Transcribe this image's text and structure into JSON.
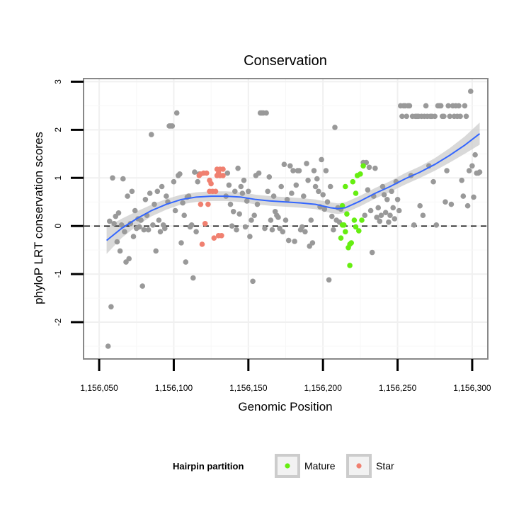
{
  "chart_data": {
    "type": "scatter",
    "title": "Conservation",
    "xlabel": "Genomic Position",
    "ylabel": "phyloP LRT conservation scores",
    "xlim": [
      1156040,
      1156310
    ],
    "ylim": [
      -2.75,
      3.05
    ],
    "x_ticks": [
      1156050,
      1156100,
      1156150,
      1156200,
      1156250,
      1156300
    ],
    "x_tick_labels": [
      "1,156,050",
      "1,156,100",
      "1,156,150",
      "1,156,200",
      "1,156,250",
      "1,156,300"
    ],
    "y_ticks": [
      -2,
      -1,
      0,
      1,
      2,
      3
    ],
    "y_tick_labels": [
      "-2",
      "-1",
      "0",
      "1",
      "2",
      "3"
    ],
    "grid": true,
    "reference_line": {
      "y": 0,
      "style": "dashed"
    },
    "legend": {
      "title": "Hairpin partition",
      "position": "bottom",
      "entries": [
        {
          "label": "Mature",
          "color": "#66ee11"
        },
        {
          "label": "Star",
          "color": "#f08070"
        }
      ]
    },
    "colors": {
      "other": "#999999",
      "Mature": "#66ee11",
      "Star": "#f08070",
      "smooth": "#3366ff",
      "band": "#cccccc"
    },
    "series": [
      {
        "group": "other",
        "points": [
          [
            1156056,
            -2.5
          ],
          [
            1156058,
            -1.68
          ],
          [
            1156059,
            1.0
          ],
          [
            1156057,
            0.1
          ],
          [
            1156060,
            0.05
          ],
          [
            1156061,
            0.2
          ],
          [
            1156062,
            -0.33
          ],
          [
            1156063,
            0.27
          ],
          [
            1156064,
            -0.52
          ],
          [
            1156065,
            0.02
          ],
          [
            1156066,
            0.98
          ],
          [
            1156067,
            -0.12
          ],
          [
            1156068,
            -0.75
          ],
          [
            1156069,
            0.62
          ],
          [
            1156070,
            -0.68
          ],
          [
            1156071,
            0.05
          ],
          [
            1156072,
            0.72
          ],
          [
            1156073,
            -0.22
          ],
          [
            1156074,
            0.32
          ],
          [
            1156075,
            -0.05
          ],
          [
            1156076,
            0.15
          ],
          [
            1156077,
            -0.02
          ],
          [
            1156078,
            0.12
          ],
          [
            1156079,
            -1.25
          ],
          [
            1156080,
            -0.08
          ],
          [
            1156081,
            0.55
          ],
          [
            1156082,
            0.22
          ],
          [
            1156083,
            -0.08
          ],
          [
            1156084,
            0.68
          ],
          [
            1156085,
            1.9
          ],
          [
            1156086,
            0.02
          ],
          [
            1156087,
            0.45
          ],
          [
            1156088,
            -0.52
          ],
          [
            1156089,
            0.72
          ],
          [
            1156090,
            0.12
          ],
          [
            1156091,
            -0.12
          ],
          [
            1156092,
            0.82
          ],
          [
            1156093,
            0.02
          ],
          [
            1156094,
            -0.05
          ],
          [
            1156095,
            0.62
          ],
          [
            1156096,
            0.5
          ],
          [
            1156097,
            2.08
          ],
          [
            1156098,
            2.08
          ],
          [
            1156099,
            2.08
          ],
          [
            1156100,
            0.92
          ],
          [
            1156101,
            0.32
          ],
          [
            1156102,
            2.35
          ],
          [
            1156103,
            1.05
          ],
          [
            1156104,
            1.08
          ],
          [
            1156105,
            -0.35
          ],
          [
            1156106,
            0.48
          ],
          [
            1156107,
            0.22
          ],
          [
            1156108,
            -0.75
          ],
          [
            1156109,
            0.6
          ],
          [
            1156110,
            0.62
          ],
          [
            1156111,
            -0.02
          ],
          [
            1156112,
            0.02
          ],
          [
            1156113,
            -1.08
          ],
          [
            1156114,
            1.12
          ],
          [
            1156115,
            -0.12
          ],
          [
            1156116,
            0.92
          ],
          [
            1156117,
            1.08
          ],
          [
            1156135,
            0.62
          ],
          [
            1156136,
            1.1
          ],
          [
            1156137,
            0.85
          ],
          [
            1156138,
            0.45
          ],
          [
            1156139,
            0.0
          ],
          [
            1156140,
            0.3
          ],
          [
            1156141,
            0.72
          ],
          [
            1156142,
            -0.08
          ],
          [
            1156143,
            1.2
          ],
          [
            1156144,
            0.25
          ],
          [
            1156145,
            0.82
          ],
          [
            1156146,
            0.68
          ],
          [
            1156147,
            0.95
          ],
          [
            1156148,
            -0.02
          ],
          [
            1156149,
            0.52
          ],
          [
            1156150,
            0.72
          ],
          [
            1156151,
            -0.22
          ],
          [
            1156152,
            0.12
          ],
          [
            1156153,
            -1.15
          ],
          [
            1156154,
            0.22
          ],
          [
            1156155,
            1.05
          ],
          [
            1156156,
            0.45
          ],
          [
            1156157,
            1.1
          ],
          [
            1156158,
            2.35
          ],
          [
            1156159,
            2.35
          ],
          [
            1156160,
            2.35
          ],
          [
            1156161,
            -0.05
          ],
          [
            1156162,
            2.35
          ],
          [
            1156163,
            0.72
          ],
          [
            1156164,
            1.02
          ],
          [
            1156165,
            0.12
          ],
          [
            1156166,
            -0.08
          ],
          [
            1156167,
            0.62
          ],
          [
            1156168,
            0.3
          ],
          [
            1156169,
            0.22
          ],
          [
            1156170,
            0.18
          ],
          [
            1156171,
            -0.05
          ],
          [
            1156172,
            0.82
          ],
          [
            1156173,
            -0.12
          ],
          [
            1156174,
            1.28
          ],
          [
            1156175,
            0.12
          ],
          [
            1156176,
            0.55
          ],
          [
            1156177,
            -0.3
          ],
          [
            1156178,
            1.25
          ],
          [
            1156179,
            0.68
          ],
          [
            1156180,
            1.15
          ],
          [
            1156181,
            -0.32
          ],
          [
            1156182,
            0.85
          ],
          [
            1156183,
            1.15
          ],
          [
            1156184,
            1.15
          ],
          [
            1156185,
            -0.08
          ],
          [
            1156186,
            -0.02
          ],
          [
            1156187,
            0.62
          ],
          [
            1156188,
            -0.12
          ],
          [
            1156189,
            1.3
          ],
          [
            1156190,
            0.95
          ],
          [
            1156191,
            -0.42
          ],
          [
            1156192,
            0.12
          ],
          [
            1156193,
            -0.35
          ],
          [
            1156194,
            1.15
          ],
          [
            1156195,
            0.82
          ],
          [
            1156196,
            0.98
          ],
          [
            1156197,
            0.72
          ],
          [
            1156198,
            0.4
          ],
          [
            1156199,
            1.38
          ],
          [
            1156200,
            0.65
          ],
          [
            1156201,
            0.35
          ],
          [
            1156202,
            1.15
          ],
          [
            1156203,
            0.5
          ],
          [
            1156204,
            -1.12
          ],
          [
            1156205,
            0.82
          ],
          [
            1156206,
            0.2
          ],
          [
            1156207,
            -0.08
          ],
          [
            1156208,
            2.05
          ],
          [
            1156209,
            0.12
          ],
          [
            1156210,
            0.38
          ],
          [
            1156211,
            0.08
          ],
          [
            1156212,
            0.35
          ],
          [
            1156227,
            1.32
          ],
          [
            1156228,
            0.22
          ],
          [
            1156229,
            1.32
          ],
          [
            1156230,
            0.75
          ],
          [
            1156231,
            1.22
          ],
          [
            1156232,
            0.32
          ],
          [
            1156233,
            -0.55
          ],
          [
            1156234,
            0.62
          ],
          [
            1156235,
            1.2
          ],
          [
            1156236,
            0.18
          ],
          [
            1156237,
            0.38
          ],
          [
            1156238,
            0.1
          ],
          [
            1156239,
            0.22
          ],
          [
            1156240,
            0.82
          ],
          [
            1156241,
            0.65
          ],
          [
            1156242,
            0.28
          ],
          [
            1156243,
            0.55
          ],
          [
            1156244,
            0.08
          ],
          [
            1156245,
            0.22
          ],
          [
            1156246,
            0.72
          ],
          [
            1156247,
            0.38
          ],
          [
            1156248,
            0.15
          ],
          [
            1156249,
            0.92
          ],
          [
            1156250,
            0.55
          ],
          [
            1156251,
            0.32
          ],
          [
            1156252,
            2.5
          ],
          [
            1156253,
            2.28
          ],
          [
            1156254,
            2.5
          ],
          [
            1156255,
            2.5
          ],
          [
            1156256,
            2.28
          ],
          [
            1156257,
            2.5
          ],
          [
            1156258,
            2.5
          ],
          [
            1156259,
            1.05
          ],
          [
            1156260,
            2.28
          ],
          [
            1156261,
            0.02
          ],
          [
            1156262,
            2.28
          ],
          [
            1156263,
            2.28
          ],
          [
            1156264,
            2.28
          ],
          [
            1156265,
            0.42
          ],
          [
            1156266,
            2.28
          ],
          [
            1156267,
            0.22
          ],
          [
            1156268,
            2.28
          ],
          [
            1156269,
            2.5
          ],
          [
            1156270,
            2.28
          ],
          [
            1156271,
            1.25
          ],
          [
            1156272,
            2.28
          ],
          [
            1156273,
            2.28
          ],
          [
            1156274,
            0.92
          ],
          [
            1156275,
            2.28
          ],
          [
            1156276,
            0.02
          ],
          [
            1156277,
            2.5
          ],
          [
            1156278,
            2.5
          ],
          [
            1156279,
            2.5
          ],
          [
            1156280,
            2.28
          ],
          [
            1156281,
            2.28
          ],
          [
            1156282,
            0.5
          ],
          [
            1156283,
            1.15
          ],
          [
            1156284,
            2.5
          ],
          [
            1156285,
            2.28
          ],
          [
            1156286,
            0.45
          ],
          [
            1156287,
            2.5
          ],
          [
            1156288,
            2.28
          ],
          [
            1156289,
            2.5
          ],
          [
            1156290,
            2.28
          ],
          [
            1156291,
            2.5
          ],
          [
            1156292,
            2.28
          ],
          [
            1156293,
            0.95
          ],
          [
            1156294,
            0.62
          ],
          [
            1156295,
            2.5
          ],
          [
            1156296,
            2.28
          ],
          [
            1156297,
            0.42
          ],
          [
            1156298,
            1.15
          ],
          [
            1156299,
            2.8
          ],
          [
            1156300,
            1.25
          ],
          [
            1156301,
            0.6
          ],
          [
            1156302,
            1.48
          ],
          [
            1156303,
            1.1
          ],
          [
            1156304,
            1.1
          ],
          [
            1156305,
            1.12
          ]
        ]
      },
      {
        "group": "Star",
        "points": [
          [
            1156118,
            1.08
          ],
          [
            1156118,
            0.45
          ],
          [
            1156119,
            -0.38
          ],
          [
            1156120,
            1.1
          ],
          [
            1156121,
            0.05
          ],
          [
            1156122,
            1.1
          ],
          [
            1156123,
            0.45
          ],
          [
            1156124,
            0.72
          ],
          [
            1156124,
            0.95
          ],
          [
            1156125,
            0.88
          ],
          [
            1156126,
            0.72
          ],
          [
            1156127,
            -0.25
          ],
          [
            1156128,
            0.72
          ],
          [
            1156129,
            1.05
          ],
          [
            1156129,
            1.18
          ],
          [
            1156130,
            -0.2
          ],
          [
            1156130,
            1.1
          ],
          [
            1156131,
            1.05
          ],
          [
            1156131,
            1.18
          ],
          [
            1156132,
            -0.2
          ],
          [
            1156133,
            1.05
          ],
          [
            1156133,
            1.18
          ],
          [
            1156117,
            1.05
          ]
        ]
      },
      {
        "group": "Mature",
        "points": [
          [
            1156212,
            -0.25
          ],
          [
            1156213,
            0.02
          ],
          [
            1156213,
            0.42
          ],
          [
            1156214,
            0.02
          ],
          [
            1156215,
            0.82
          ],
          [
            1156215,
            -0.12
          ],
          [
            1156216,
            0.25
          ],
          [
            1156217,
            -0.45
          ],
          [
            1156218,
            -0.82
          ],
          [
            1156218,
            -0.38
          ],
          [
            1156219,
            -0.35
          ],
          [
            1156220,
            0.92
          ],
          [
            1156221,
            0.12
          ],
          [
            1156222,
            0.68
          ],
          [
            1156223,
            1.05
          ],
          [
            1156224,
            -0.1
          ],
          [
            1156225,
            1.08
          ],
          [
            1156226,
            0.12
          ],
          [
            1156227,
            1.25
          ],
          [
            1156222,
            -0.02
          ]
        ]
      }
    ],
    "smooth": {
      "x": [
        1156055,
        1156065,
        1156075,
        1156085,
        1156095,
        1156105,
        1156115,
        1156125,
        1156135,
        1156145,
        1156155,
        1156165,
        1156175,
        1156185,
        1156195,
        1156205,
        1156210,
        1156215,
        1156225,
        1156235,
        1156245,
        1156255,
        1156265,
        1156275,
        1156285,
        1156295,
        1156305
      ],
      "y": [
        -0.3,
        -0.05,
        0.15,
        0.32,
        0.45,
        0.55,
        0.6,
        0.62,
        0.62,
        0.6,
        0.55,
        0.52,
        0.5,
        0.48,
        0.45,
        0.38,
        0.36,
        0.38,
        0.52,
        0.68,
        0.82,
        0.98,
        1.12,
        1.28,
        1.47,
        1.68,
        1.92
      ],
      "se": [
        0.28,
        0.2,
        0.15,
        0.12,
        0.11,
        0.1,
        0.1,
        0.1,
        0.1,
        0.1,
        0.1,
        0.1,
        0.1,
        0.1,
        0.1,
        0.11,
        0.11,
        0.11,
        0.11,
        0.11,
        0.11,
        0.12,
        0.12,
        0.13,
        0.15,
        0.18,
        0.23
      ]
    }
  }
}
